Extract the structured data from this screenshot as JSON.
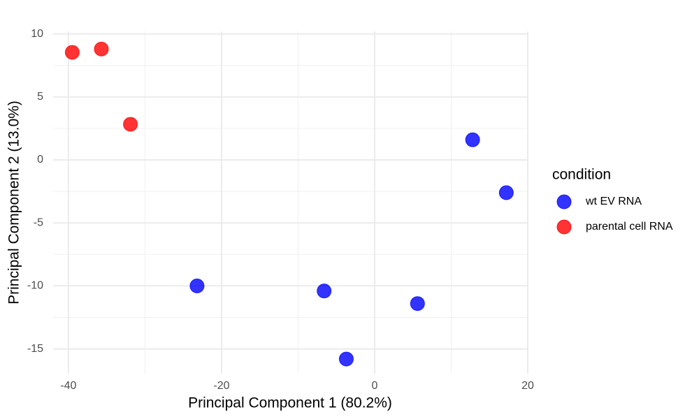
{
  "chart_data": {
    "type": "scatter",
    "xlabel": "Principal Component 1 (80.2%)",
    "ylabel": "Principal Component 2 (13.0%)",
    "legend_title": "condition",
    "legend": "right",
    "grid": true,
    "xlim": [
      -42,
      20
    ],
    "ylim": [
      -16.96,
      10.2
    ],
    "xticks": [
      -40,
      -20,
      0,
      20
    ],
    "yticks": [
      -15,
      -10,
      -5,
      0,
      5,
      10
    ],
    "xminor": [
      -30,
      -10,
      10
    ],
    "yminor": [
      -12.5,
      -7.5,
      -2.5,
      2.5,
      7.5
    ],
    "series": [
      {
        "name": "wt EV RNA",
        "color": "#0000ff",
        "x": [
          12.8,
          17.2,
          -23.2,
          -6.6,
          5.6,
          -3.7
        ],
        "y": [
          1.6,
          -2.6,
          -10.0,
          -10.4,
          -11.4,
          -15.8
        ]
      },
      {
        "name": "parental cell RNA",
        "color": "#ff0000",
        "x": [
          -39.5,
          -35.7,
          -31.9
        ],
        "y": [
          8.54,
          8.8,
          2.83
        ]
      }
    ]
  }
}
